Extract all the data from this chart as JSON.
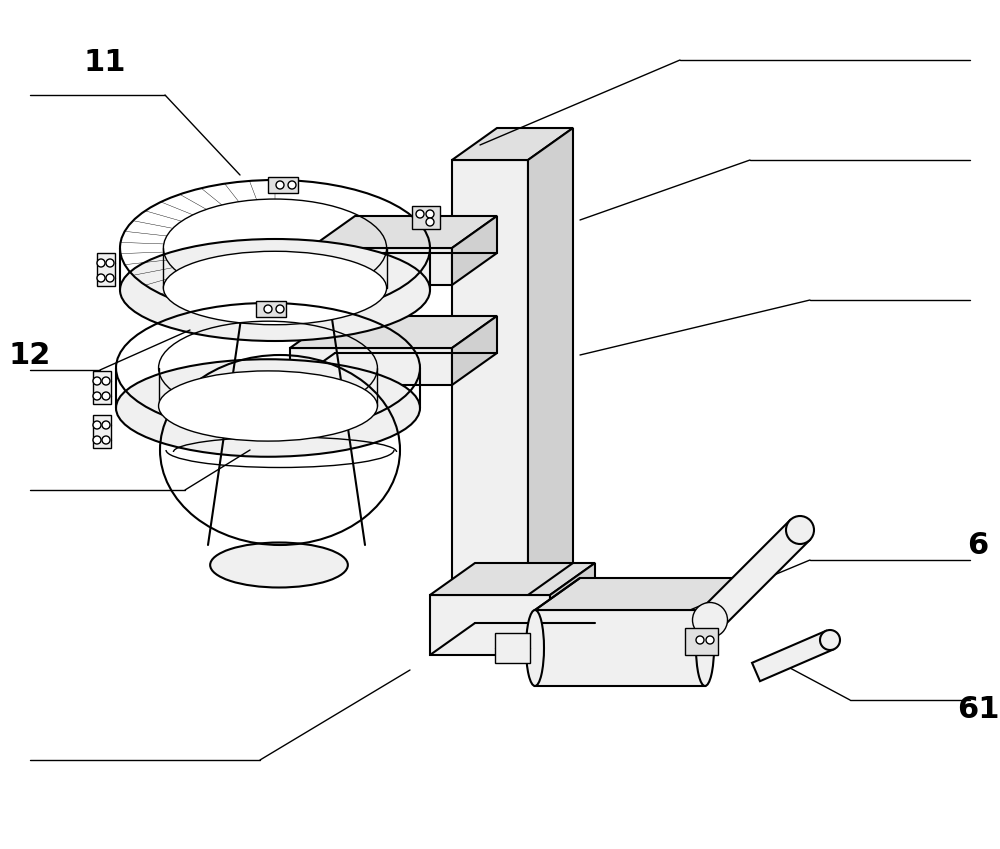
{
  "bg_color": "#ffffff",
  "lc": "#000000",
  "fill_light": "#f0f0f0",
  "fill_mid": "#e0e0e0",
  "fill_dark": "#d0d0d0",
  "label_11": "11",
  "label_12": "12",
  "label_6": "6",
  "label_61": "61",
  "figsize": [
    10.0,
    8.49
  ],
  "dpi": 100
}
